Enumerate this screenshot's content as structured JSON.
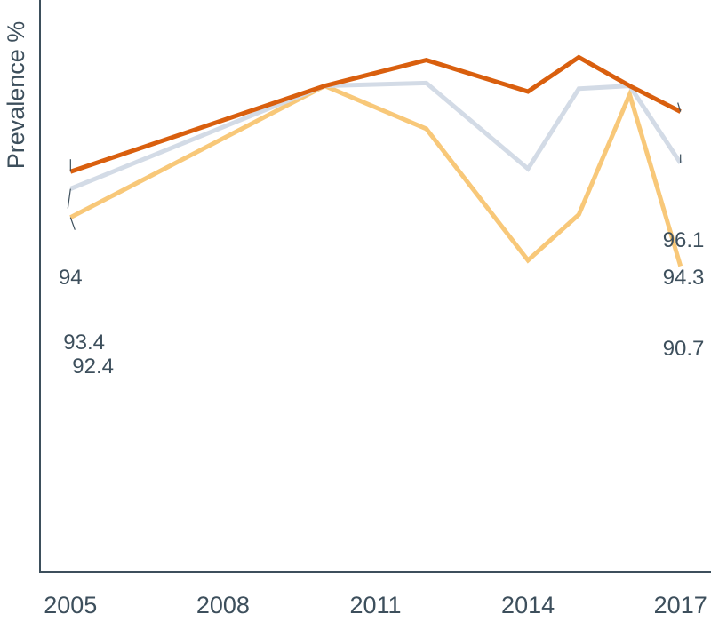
{
  "chart_data": {
    "type": "line",
    "title": "",
    "xlabel": "",
    "ylabel": "Prevalence %",
    "x": [
      2005,
      2010,
      2012,
      2014,
      2015,
      2016,
      2017
    ],
    "xticks": [
      "2005",
      "2008",
      "2011",
      "2014",
      "2017"
    ],
    "xlim": [
      2004.4,
      2017.6
    ],
    "ylim": [
      80,
      100
    ],
    "grid": false,
    "legend": "none",
    "series": [
      {
        "color": "#d95f0e",
        "values": [
          94,
          97.0,
          97.9,
          96.8,
          98.0,
          97.0,
          96.1
        ],
        "end_labels": [
          "94",
          "96.1"
        ]
      },
      {
        "color": "#d3dbe6",
        "values": [
          93.4,
          97.0,
          97.1,
          94.1,
          96.9,
          97.0,
          94.3
        ],
        "end_labels": [
          "93.4",
          "94.3"
        ]
      },
      {
        "color": "#f8c879",
        "values": [
          92.4,
          97.0,
          95.5,
          90.9,
          92.5,
          96.7,
          90.7
        ],
        "end_labels": [
          "92.4",
          "90.7"
        ]
      }
    ]
  }
}
